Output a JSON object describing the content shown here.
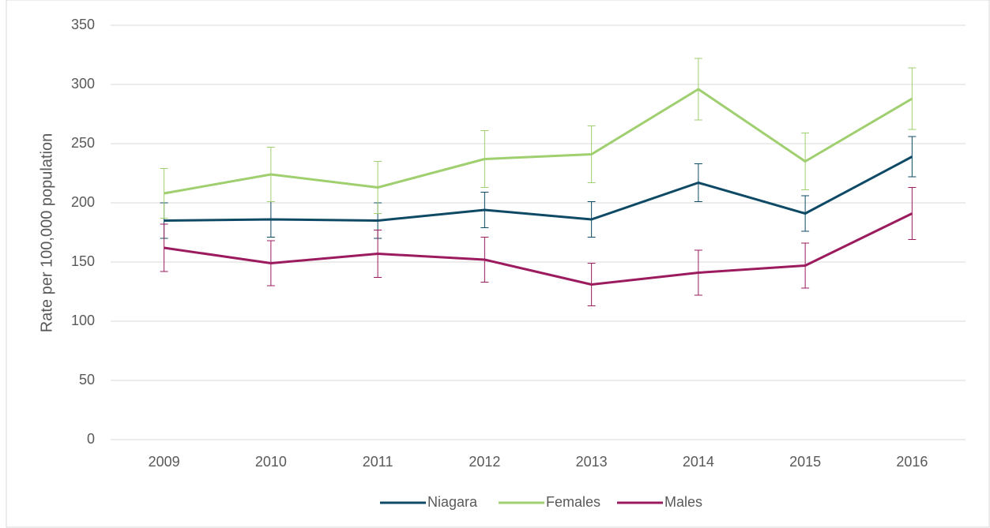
{
  "chart_data": {
    "type": "line",
    "y_label": "Rate per 100,000 population",
    "categories": [
      "2009",
      "2010",
      "2011",
      "2012",
      "2013",
      "2014",
      "2015",
      "2016"
    ],
    "series": [
      {
        "name": "Niagara",
        "color": "#0e4a66",
        "values": [
          185,
          186,
          185,
          194,
          186,
          217,
          191,
          239
        ],
        "errors": [
          15,
          15,
          15,
          15,
          15,
          16,
          15,
          17
        ]
      },
      {
        "name": "Females",
        "color": "#9fcf6f",
        "values": [
          208,
          224,
          213,
          237,
          241,
          296,
          235,
          288
        ],
        "errors": [
          21,
          23,
          22,
          24,
          24,
          26,
          24,
          26
        ]
      },
      {
        "name": "Males",
        "color": "#9b1b5e",
        "values": [
          162,
          149,
          157,
          152,
          131,
          141,
          147,
          191
        ],
        "errors": [
          20,
          19,
          20,
          19,
          18,
          19,
          19,
          22
        ]
      }
    ],
    "ylim": [
      0,
      350
    ],
    "yticks": [
      0,
      50,
      100,
      150,
      200,
      250,
      300,
      350
    ],
    "grid": true,
    "legend": "bottom"
  }
}
